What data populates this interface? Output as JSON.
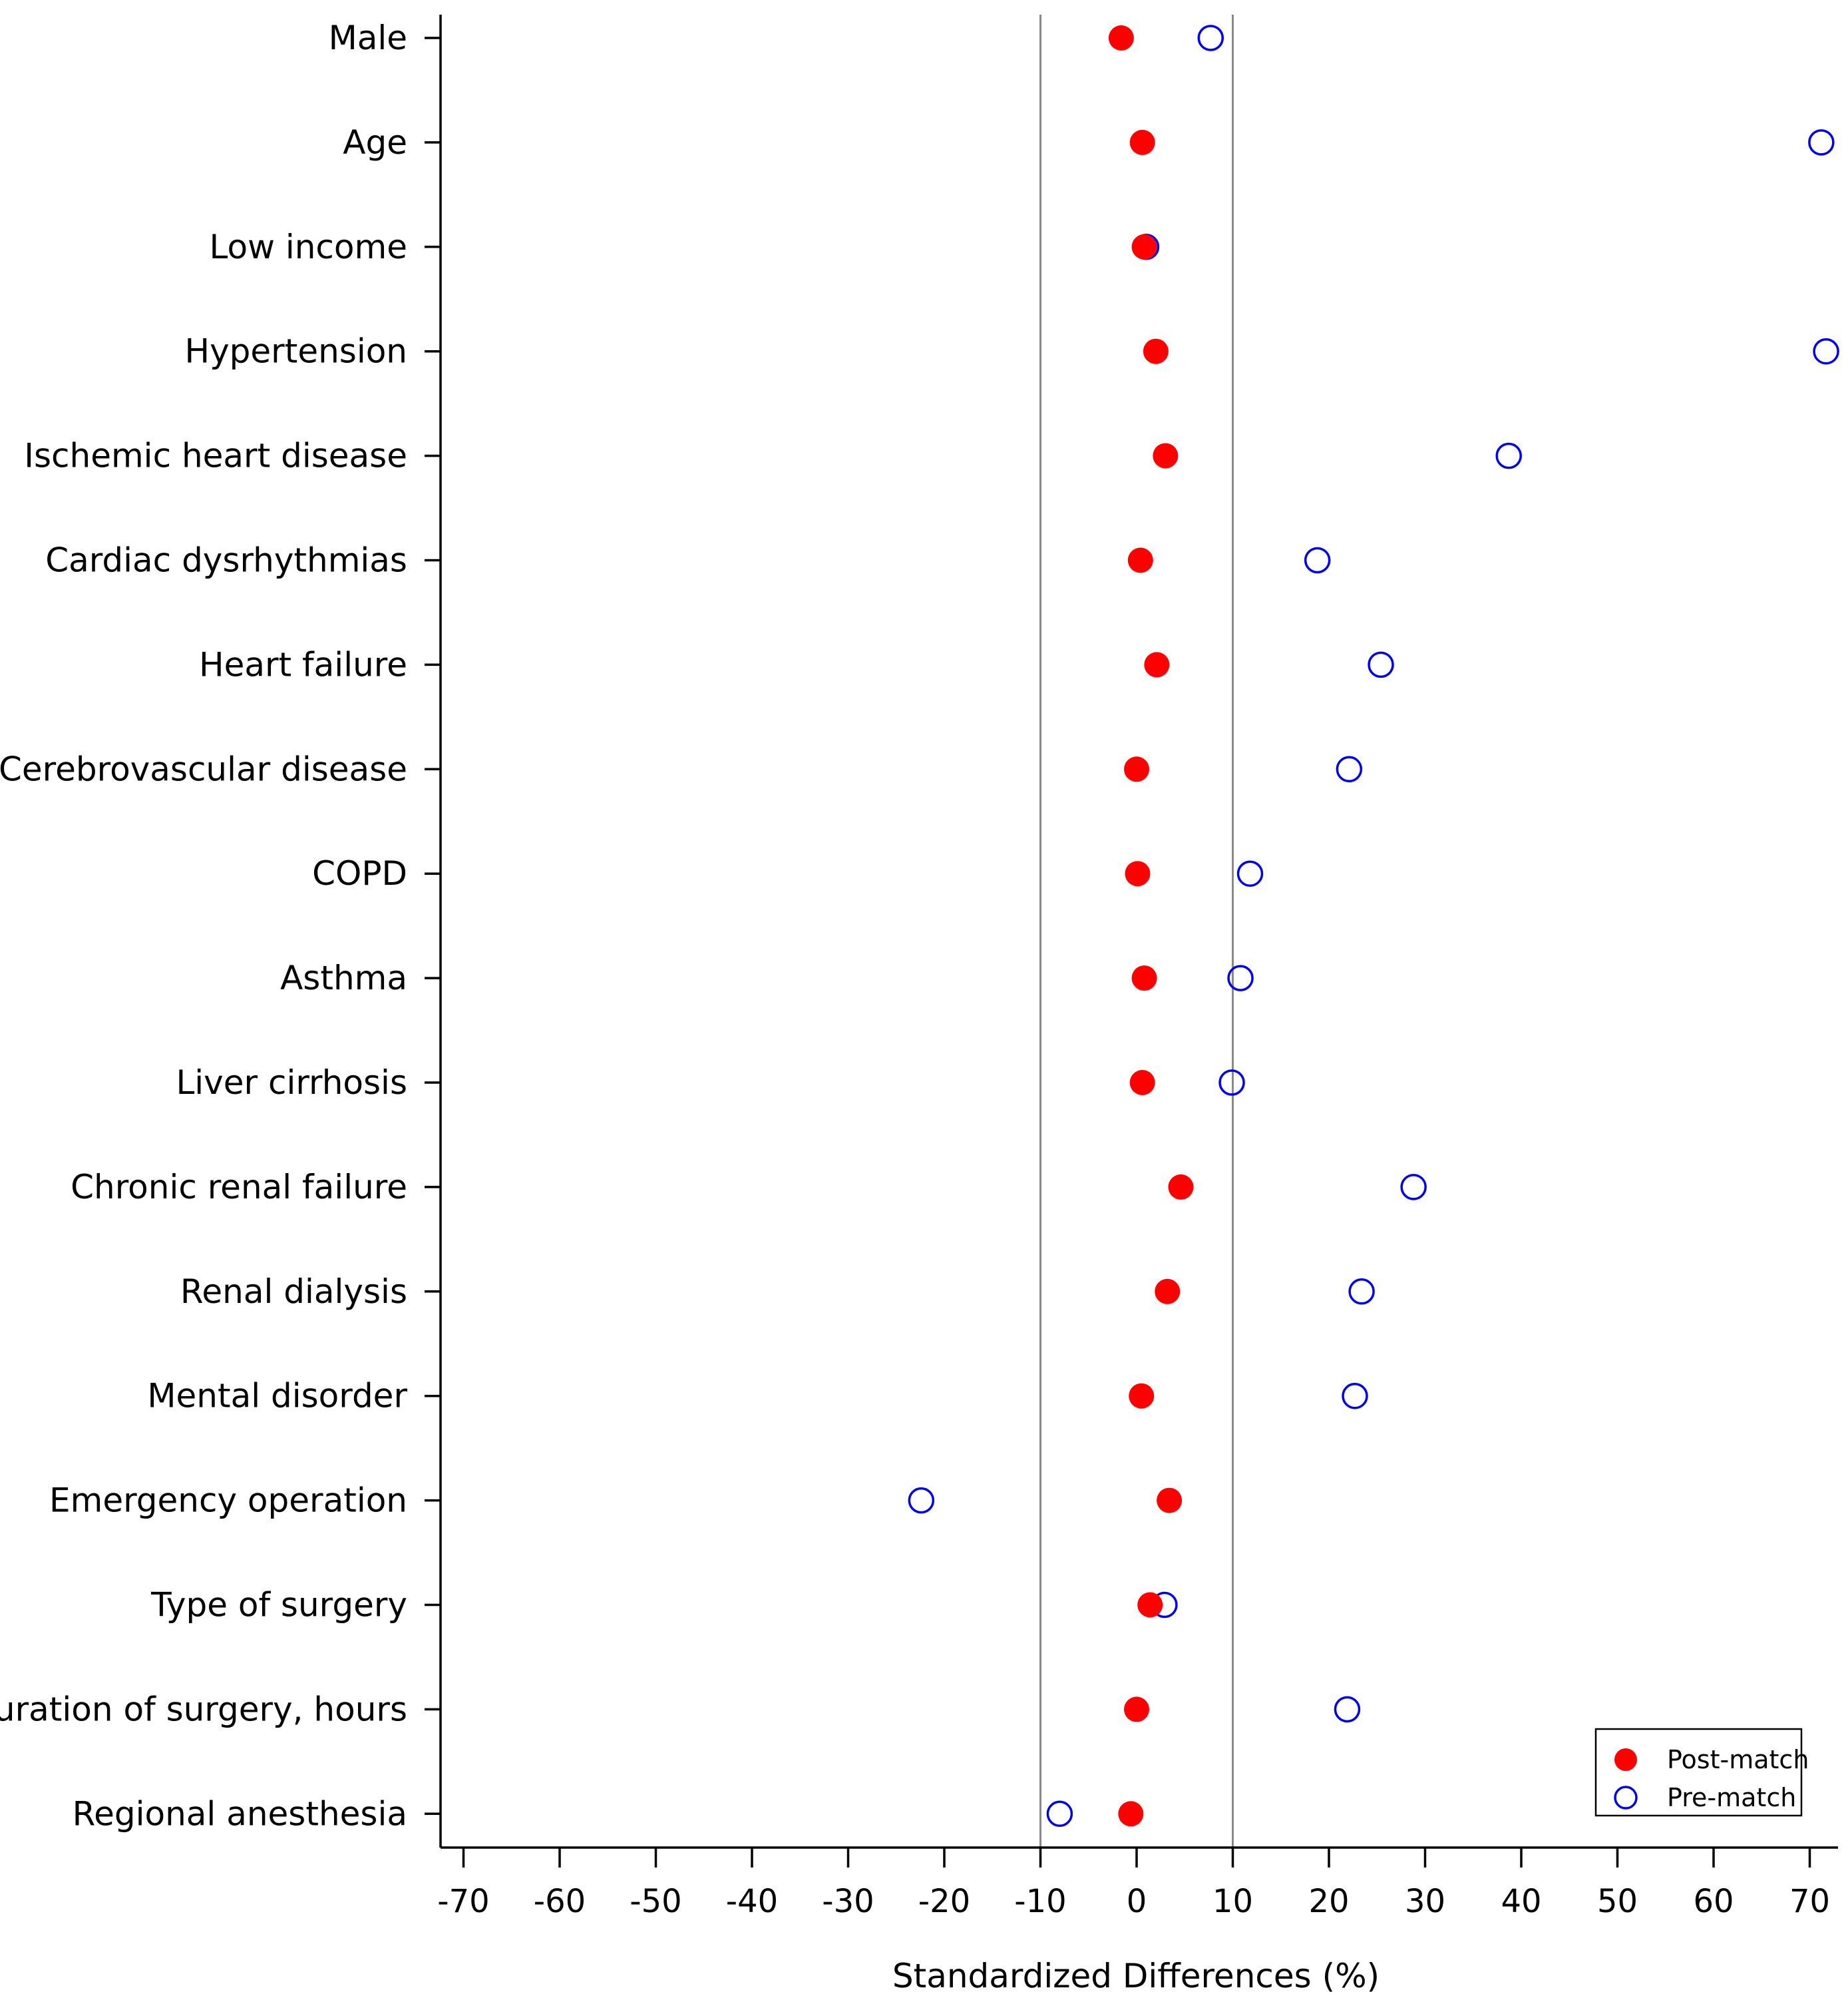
{
  "chart_data": {
    "type": "scatter",
    "orientation": "horizontal-dot-plot",
    "title": "",
    "xlabel": "Standardized Differences (%)",
    "ylabel": "",
    "xlim": [
      -72.5,
      72.5
    ],
    "xticks": [
      -70,
      -60,
      -50,
      -40,
      -30,
      -20,
      -10,
      0,
      10,
      20,
      30,
      40,
      50,
      60,
      70
    ],
    "xtick_labels": [
      "-70",
      "-60",
      "-50",
      "-40",
      "-30",
      "-20",
      "-10",
      "0",
      "10",
      "20",
      "30",
      "40",
      "50",
      "60",
      "70"
    ],
    "reference_lines": [
      -10,
      10
    ],
    "grid": false,
    "legend_position": "bottom-right",
    "categories": [
      "Male",
      "Age",
      "Low income",
      "Hypertension",
      "Ischemic heart disease",
      "Cardiac dysrhythmias",
      "Heart failure",
      "Cerebrovascular disease",
      "COPD",
      "Asthma",
      "Liver cirrhosis",
      "Chronic renal failure",
      "Renal dialysis",
      "Mental disorder",
      "Emergency operation",
      "Type of surgery",
      "Duration of surgery, hours",
      "Regional anesthesia"
    ],
    "series": [
      {
        "name": "Post-match",
        "marker": "filled-circle",
        "color": "#ff0000",
        "values": [
          -1.6,
          0.6,
          0.8,
          2.0,
          3.0,
          0.4,
          2.1,
          0.0,
          0.1,
          0.8,
          0.6,
          4.6,
          3.2,
          0.5,
          3.4,
          1.4,
          0.0,
          -0.6
        ]
      },
      {
        "name": "Pre-match",
        "marker": "open-circle",
        "color": "#0000ee",
        "values": [
          7.7,
          71.2,
          1.0,
          71.7,
          38.7,
          18.8,
          25.4,
          22.1,
          11.8,
          10.8,
          9.9,
          28.8,
          23.4,
          22.7,
          -22.4,
          2.9,
          21.9,
          -8.0
        ]
      }
    ]
  }
}
